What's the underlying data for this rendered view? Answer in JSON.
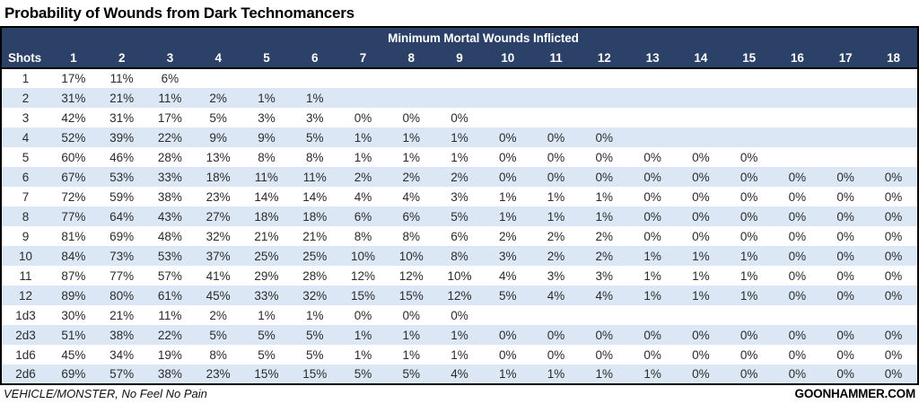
{
  "title": "Probability of Wounds from Dark Technomancers",
  "footer": {
    "left": "VEHICLE/MONSTER, No Feel No Pain",
    "right": "GOONHAMMER.COM"
  },
  "colors": {
    "header_bg": "#2b4168",
    "header_text": "#ffffff",
    "row_alt_bg": "#dbe7f4",
    "cell_text": "#2b2b2b",
    "border": "#000000"
  },
  "chart_data": {
    "type": "table",
    "title": "Probability of Wounds from Dark Technomancers",
    "column_group_label": "Minimum Mortal Wounds Inflicted",
    "row_axis_label": "Shots",
    "value_unit": "percent",
    "columns": [
      "1",
      "2",
      "3",
      "4",
      "5",
      "6",
      "7",
      "8",
      "9",
      "10",
      "11",
      "12",
      "13",
      "14",
      "15",
      "16",
      "17",
      "18"
    ],
    "rows": [
      {
        "shots": "1",
        "values": [
          17,
          11,
          6,
          null,
          null,
          null,
          null,
          null,
          null,
          null,
          null,
          null,
          null,
          null,
          null,
          null,
          null,
          null
        ]
      },
      {
        "shots": "2",
        "values": [
          31,
          21,
          11,
          2,
          1,
          1,
          null,
          null,
          null,
          null,
          null,
          null,
          null,
          null,
          null,
          null,
          null,
          null
        ]
      },
      {
        "shots": "3",
        "values": [
          42,
          31,
          17,
          5,
          3,
          3,
          0,
          0,
          0,
          null,
          null,
          null,
          null,
          null,
          null,
          null,
          null,
          null
        ]
      },
      {
        "shots": "4",
        "values": [
          52,
          39,
          22,
          9,
          9,
          5,
          1,
          1,
          1,
          0,
          0,
          0,
          null,
          null,
          null,
          null,
          null,
          null
        ]
      },
      {
        "shots": "5",
        "values": [
          60,
          46,
          28,
          13,
          8,
          8,
          1,
          1,
          1,
          0,
          0,
          0,
          0,
          0,
          0,
          null,
          null,
          null
        ]
      },
      {
        "shots": "6",
        "values": [
          67,
          53,
          33,
          18,
          11,
          11,
          2,
          2,
          2,
          0,
          0,
          0,
          0,
          0,
          0,
          0,
          0,
          0
        ]
      },
      {
        "shots": "7",
        "values": [
          72,
          59,
          38,
          23,
          14,
          14,
          4,
          4,
          3,
          1,
          1,
          1,
          0,
          0,
          0,
          0,
          0,
          0
        ]
      },
      {
        "shots": "8",
        "values": [
          77,
          64,
          43,
          27,
          18,
          18,
          6,
          6,
          5,
          1,
          1,
          1,
          0,
          0,
          0,
          0,
          0,
          0
        ]
      },
      {
        "shots": "9",
        "values": [
          81,
          69,
          48,
          32,
          21,
          21,
          8,
          8,
          6,
          2,
          2,
          2,
          0,
          0,
          0,
          0,
          0,
          0
        ]
      },
      {
        "shots": "10",
        "values": [
          84,
          73,
          53,
          37,
          25,
          25,
          10,
          10,
          8,
          3,
          2,
          2,
          1,
          1,
          1,
          0,
          0,
          0
        ]
      },
      {
        "shots": "11",
        "values": [
          87,
          77,
          57,
          41,
          29,
          28,
          12,
          12,
          10,
          4,
          3,
          3,
          1,
          1,
          1,
          0,
          0,
          0
        ]
      },
      {
        "shots": "12",
        "values": [
          89,
          80,
          61,
          45,
          33,
          32,
          15,
          15,
          12,
          5,
          4,
          4,
          1,
          1,
          1,
          0,
          0,
          0
        ]
      },
      {
        "shots": "1d3",
        "values": [
          30,
          21,
          11,
          2,
          1,
          1,
          0,
          0,
          0,
          null,
          null,
          null,
          null,
          null,
          null,
          null,
          null,
          null
        ]
      },
      {
        "shots": "2d3",
        "values": [
          51,
          38,
          22,
          5,
          5,
          5,
          1,
          1,
          1,
          0,
          0,
          0,
          0,
          0,
          0,
          0,
          0,
          0
        ]
      },
      {
        "shots": "1d6",
        "values": [
          45,
          34,
          19,
          8,
          5,
          5,
          1,
          1,
          1,
          0,
          0,
          0,
          0,
          0,
          0,
          0,
          0,
          0
        ]
      },
      {
        "shots": "2d6",
        "values": [
          69,
          57,
          38,
          23,
          15,
          15,
          5,
          5,
          4,
          1,
          1,
          1,
          1,
          0,
          0,
          0,
          0,
          0
        ]
      }
    ]
  }
}
